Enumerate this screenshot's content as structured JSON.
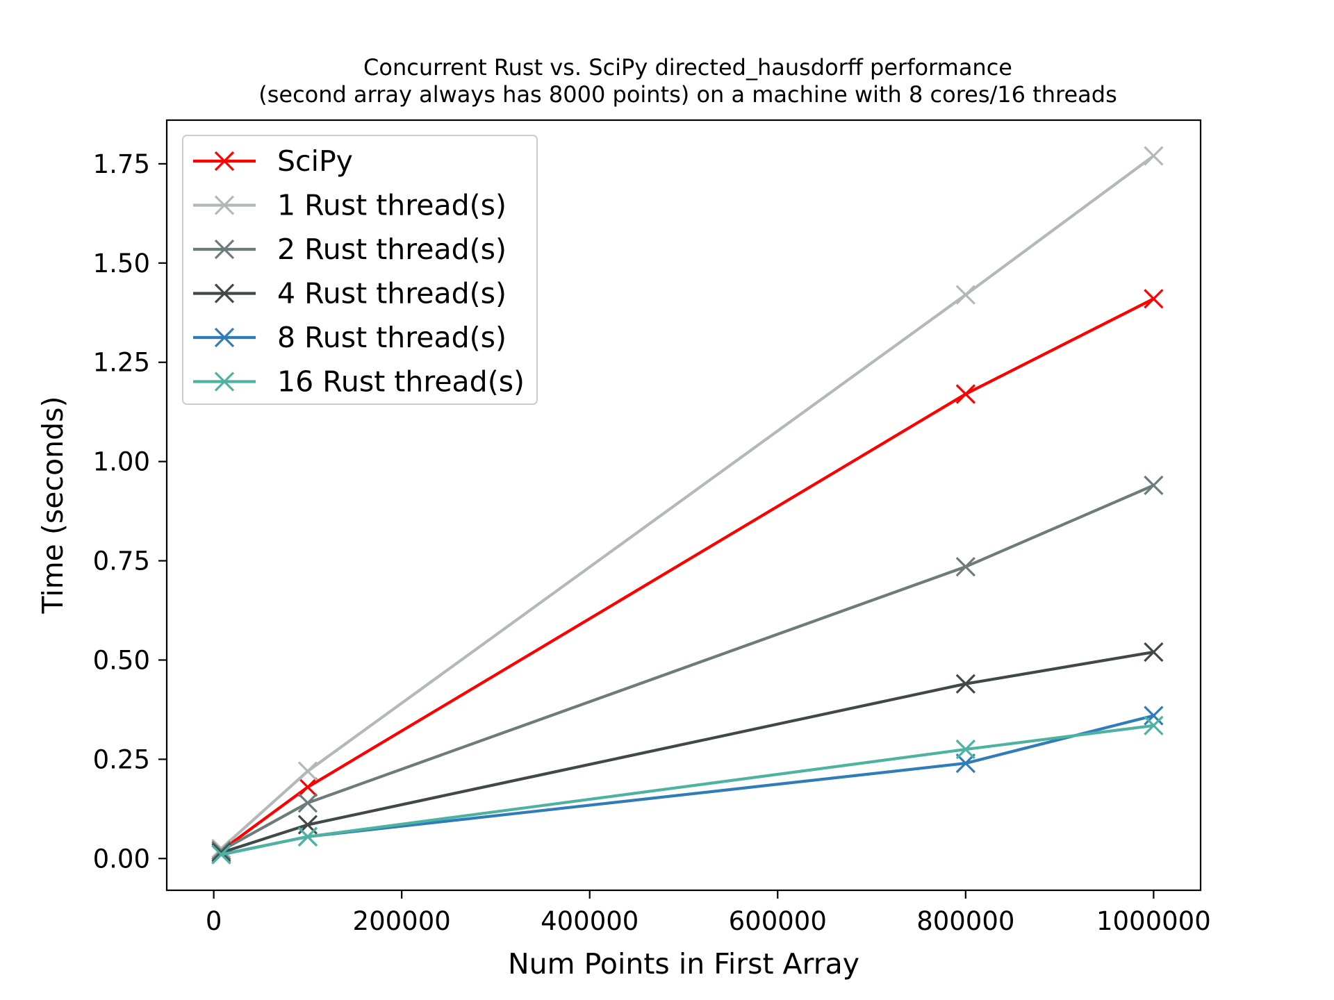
{
  "chart_data": {
    "type": "line",
    "title": "Concurrent Rust vs. SciPy directed_hausdorff performance",
    "subtitle": "(second array always has 8000 points) on a machine with 8 cores/16 threads",
    "xlabel": "Num Points in First Array",
    "ylabel": "Time (seconds)",
    "xlim": [
      -50000,
      1050000
    ],
    "ylim": [
      -0.08,
      1.86
    ],
    "x_ticks": [
      0,
      200000,
      400000,
      600000,
      800000,
      1000000
    ],
    "x_tick_labels": [
      "0",
      "200000",
      "400000",
      "600000",
      "800000",
      "1000000"
    ],
    "y_ticks": [
      0.0,
      0.25,
      0.5,
      0.75,
      1.0,
      1.25,
      1.5,
      1.75
    ],
    "y_tick_labels": [
      "0.00",
      "0.25",
      "0.50",
      "0.75",
      "1.00",
      "1.25",
      "1.50",
      "1.75"
    ],
    "grid": false,
    "legend_position": "top-left",
    "marker": "x",
    "x": [
      8000,
      100000,
      800000,
      1000000
    ],
    "series": [
      {
        "name": "SciPy",
        "color": "#ff0000",
        "values": [
          0.02,
          0.18,
          1.17,
          1.41
        ]
      },
      {
        "name": "1 Rust thread(s)",
        "color": "#b3b8b8",
        "values": [
          0.025,
          0.22,
          1.42,
          1.77
        ]
      },
      {
        "name": "2 Rust thread(s)",
        "color": "#6e7b7b",
        "values": [
          0.02,
          0.14,
          0.735,
          0.94
        ]
      },
      {
        "name": "4 Rust thread(s)",
        "color": "#414848",
        "values": [
          0.015,
          0.085,
          0.44,
          0.52
        ]
      },
      {
        "name": "8 Rust thread(s)",
        "color": "#2f7cb8",
        "values": [
          0.01,
          0.055,
          0.24,
          0.36
        ]
      },
      {
        "name": "16 Rust thread(s)",
        "color": "#4db3a0",
        "values": [
          0.01,
          0.055,
          0.275,
          0.335
        ]
      }
    ]
  }
}
